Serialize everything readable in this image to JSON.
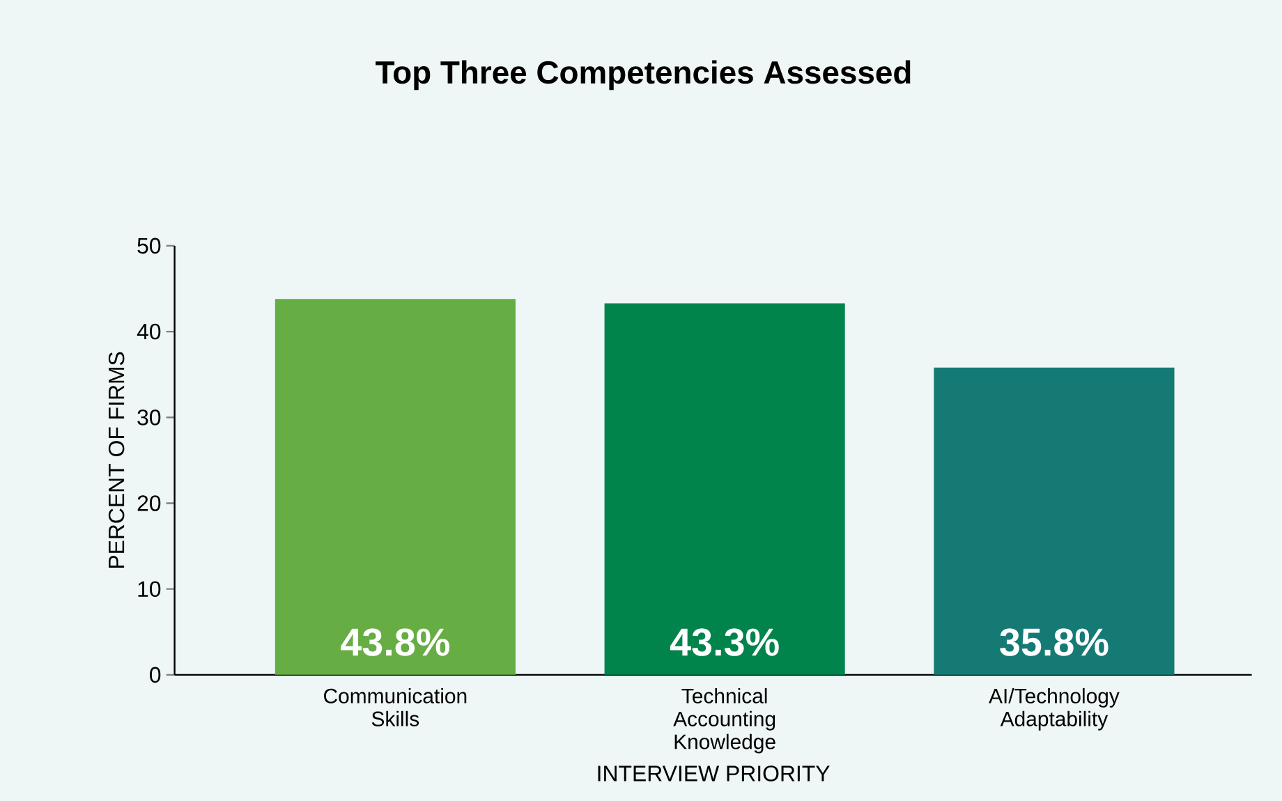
{
  "chart_data": {
    "type": "bar",
    "title": "Top Three Competencies Assessed",
    "xlabel": "INTERVIEW PRIORITY",
    "ylabel": "PERCENT OF FIRMS",
    "categories": [
      "Communication Skills",
      "Technical Accounting Knowledge",
      "AI/Technology Adaptability"
    ],
    "values": [
      43.8,
      43.3,
      35.8
    ],
    "value_labels": [
      "43.8%",
      "43.3%",
      "35.8%"
    ],
    "colors": [
      "#66ad44",
      "#00844c",
      "#157a74"
    ],
    "ylim": [
      0,
      50
    ],
    "yticks": [
      0,
      10,
      20,
      30,
      40,
      50
    ]
  }
}
